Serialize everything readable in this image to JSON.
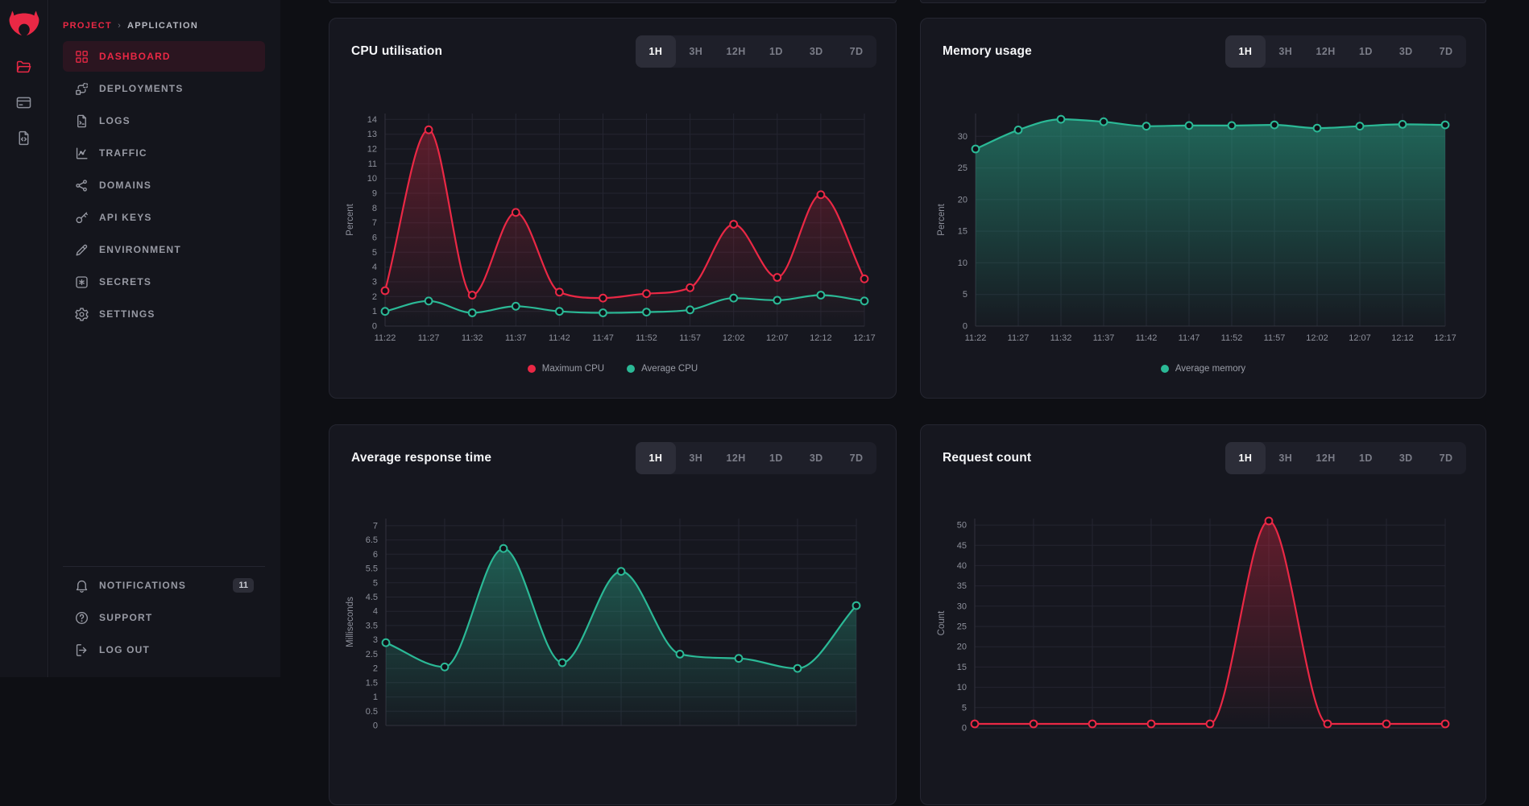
{
  "sidebar": {
    "breadcrumb": {
      "project": "PROJECT",
      "separator": "›",
      "application": "APPLICATION"
    },
    "items": [
      {
        "id": "dashboard",
        "label": "DASHBOARD",
        "icon": "dashboard-icon",
        "active": true
      },
      {
        "id": "deployments",
        "label": "DEPLOYMENTS",
        "icon": "deployments-icon",
        "active": false
      },
      {
        "id": "logs",
        "label": "LOGS",
        "icon": "logs-icon",
        "active": false
      },
      {
        "id": "traffic",
        "label": "TRAFFIC",
        "icon": "traffic-icon",
        "active": false
      },
      {
        "id": "domains",
        "label": "DOMAINS",
        "icon": "domains-icon",
        "active": false
      },
      {
        "id": "api-keys",
        "label": "API KEYS",
        "icon": "key-icon",
        "active": false
      },
      {
        "id": "environment",
        "label": "ENVIRONMENT",
        "icon": "pencil-icon",
        "active": false
      },
      {
        "id": "secrets",
        "label": "SECRETS",
        "icon": "asterisk-icon",
        "active": false
      },
      {
        "id": "settings",
        "label": "SETTINGS",
        "icon": "gear-icon",
        "active": false
      }
    ],
    "footer_items": [
      {
        "id": "notifications",
        "label": "NOTIFICATIONS",
        "icon": "bell-icon",
        "badge": "11"
      },
      {
        "id": "support",
        "label": "SUPPORT",
        "icon": "help-icon"
      },
      {
        "id": "log-out",
        "label": "LOG OUT",
        "icon": "logout-icon"
      }
    ],
    "rail_icons": [
      "nest-logo",
      "folder-icon",
      "credit-card-icon",
      "file-code-icon"
    ]
  },
  "range_control": {
    "options": [
      "1H",
      "3H",
      "12H",
      "1D",
      "3D",
      "7D"
    ],
    "active": "1H"
  },
  "colors": {
    "accent_red": "#ea2845",
    "teal": "#2bb996",
    "page_bg": "#0e0f14",
    "sidebar_bg": "#14151c",
    "card_bg": "#16171f",
    "active_item_bg": "#2b1520",
    "muted_text": "#9a9da7"
  },
  "chart_data": [
    {
      "id": "cpu",
      "type": "line",
      "title": "CPU utilisation",
      "ylabel": "Percent",
      "ylim": [
        0,
        14.4
      ],
      "ytick_step": 1,
      "ytick_max": 14,
      "grid": true,
      "legend": true,
      "legend_position": "bottom",
      "x_labels": [
        "11:22",
        "11:27",
        "11:32",
        "11:37",
        "11:42",
        "11:47",
        "11:52",
        "11:57",
        "12:02",
        "12:07",
        "12:12",
        "12:17"
      ],
      "series": [
        {
          "name": "Maximum CPU",
          "color": "#ea2845",
          "fill": "red",
          "values": [
            2.4,
            13.3,
            2.1,
            7.7,
            2.3,
            1.9,
            2.2,
            2.6,
            6.9,
            3.3,
            8.9,
            3.2
          ]
        },
        {
          "name": "Average CPU",
          "color": "#2bb996",
          "fill": "soft",
          "values": [
            1.0,
            1.7,
            0.9,
            1.35,
            1.0,
            0.9,
            0.95,
            1.1,
            1.9,
            1.75,
            2.1,
            1.7
          ]
        }
      ]
    },
    {
      "id": "memory",
      "type": "area",
      "title": "Memory usage",
      "ylabel": "Percent",
      "ylim": [
        0,
        33.6
      ],
      "ytick_step": 5,
      "ytick_max": 30,
      "grid": true,
      "legend": true,
      "legend_position": "bottom",
      "x_labels": [
        "11:22",
        "11:27",
        "11:32",
        "11:37",
        "11:42",
        "11:47",
        "11:52",
        "11:57",
        "12:02",
        "12:07",
        "12:12",
        "12:17"
      ],
      "series": [
        {
          "name": "Average memory",
          "color": "#2bb996",
          "fill": "strong",
          "values": [
            28,
            31,
            32.7,
            32.3,
            31.6,
            31.7,
            31.7,
            31.8,
            31.3,
            31.6,
            31.9,
            31.8
          ]
        }
      ]
    },
    {
      "id": "response-time",
      "type": "area",
      "title": "Average response time",
      "ylabel": "Milliseconds",
      "ylim": [
        0,
        7.25
      ],
      "ytick_step": 0.5,
      "ytick_max": 7,
      "grid": true,
      "legend": false,
      "x_labels": [],
      "series": [
        {
          "color": "#2bb996",
          "fill": "strong",
          "values": [
            2.9,
            2.05,
            6.2,
            2.2,
            5.4,
            2.5,
            2.35,
            2.0,
            4.2
          ]
        }
      ]
    },
    {
      "id": "request-count",
      "type": "area",
      "title": "Request count",
      "ylabel": "Count",
      "ylim": [
        0,
        51.6
      ],
      "ytick_step": 5,
      "ytick_max": 50,
      "grid": true,
      "legend": false,
      "x_labels": [],
      "series": [
        {
          "color": "#ea2845",
          "fill": "red",
          "values": [
            1,
            1,
            1,
            1,
            1,
            51,
            1,
            1,
            1
          ]
        }
      ]
    }
  ]
}
